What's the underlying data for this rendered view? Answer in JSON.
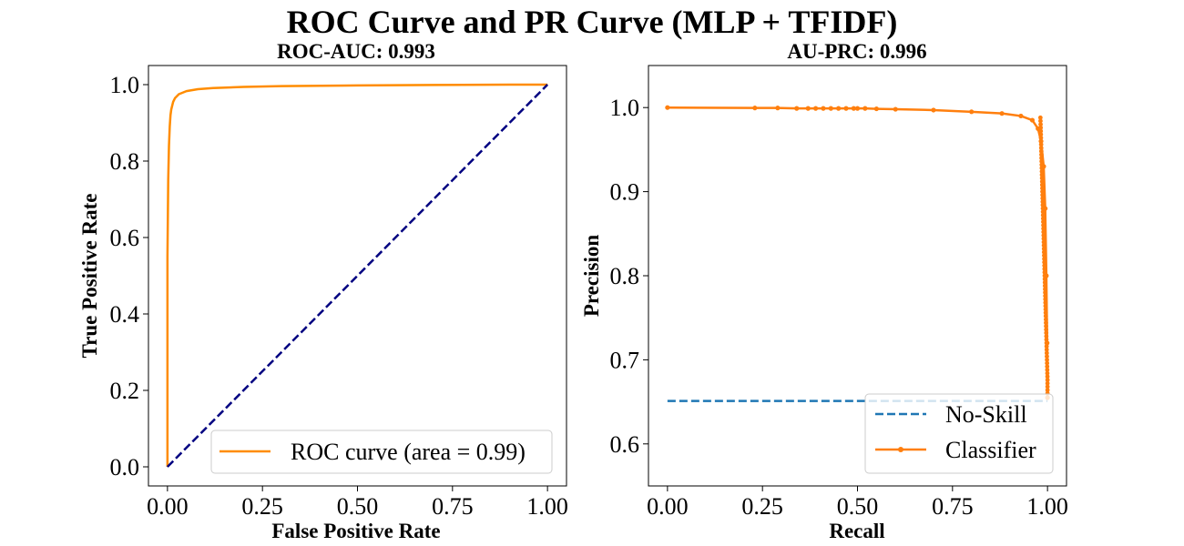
{
  "figure": {
    "title": "ROC Curve and PR Curve (MLP + TFIDF)"
  },
  "chart_data": [
    {
      "type": "line",
      "title": "ROC-AUC: 0.993",
      "xlabel": "False Positive Rate",
      "ylabel": "True Positive Rate",
      "xlim": [
        -0.05,
        1.05
      ],
      "ylim": [
        -0.05,
        1.05
      ],
      "xticks": [
        "0.00",
        "0.25",
        "0.50",
        "0.75",
        "1.00"
      ],
      "yticks": [
        "0.0",
        "0.2",
        "0.4",
        "0.6",
        "0.8",
        "1.0"
      ],
      "legend_position": "lower-right",
      "series": [
        {
          "name": "ROC curve (area = 0.99)",
          "color": "#ff8c00",
          "style": "solid",
          "x": [
            0,
            0.0,
            0.002,
            0.004,
            0.006,
            0.008,
            0.01,
            0.015,
            0.02,
            0.03,
            0.05,
            0.08,
            0.12,
            0.2,
            0.3,
            0.5,
            0.7,
            0.9,
            1.0
          ],
          "y": [
            0,
            0.55,
            0.75,
            0.84,
            0.89,
            0.92,
            0.935,
            0.955,
            0.965,
            0.975,
            0.983,
            0.988,
            0.991,
            0.994,
            0.996,
            0.998,
            0.999,
            1.0,
            1.0
          ]
        },
        {
          "name": "",
          "color": "#000080",
          "style": "dashed",
          "x": [
            0,
            1
          ],
          "y": [
            0,
            1
          ]
        }
      ]
    },
    {
      "type": "line",
      "title": "AU-PRC: 0.996",
      "xlabel": "Recall",
      "ylabel": "Precision",
      "xlim": [
        -0.05,
        1.05
      ],
      "ylim": [
        0.55,
        1.05
      ],
      "xticks": [
        "0.00",
        "0.25",
        "0.50",
        "0.75",
        "1.00"
      ],
      "yticks": [
        "0.6",
        "0.7",
        "0.8",
        "0.9",
        "1.0"
      ],
      "legend_position": "lower-right",
      "series": [
        {
          "name": "No-Skill",
          "color": "#1f77b4",
          "style": "dashed",
          "x": [
            0,
            1
          ],
          "y": [
            0.651,
            0.651
          ]
        },
        {
          "name": "Classifier",
          "color": "#ff7f0e",
          "style": "solid-marker",
          "x": [
            0.0,
            0.23,
            0.29,
            0.34,
            0.37,
            0.39,
            0.41,
            0.43,
            0.45,
            0.47,
            0.49,
            0.5,
            0.52,
            0.55,
            0.6,
            0.7,
            0.8,
            0.88,
            0.93,
            0.96,
            0.975,
            0.983,
            0.99,
            0.994,
            0.997,
            0.999,
            1.0
          ],
          "y": [
            1.0,
            0.9995,
            0.9995,
            0.999,
            0.999,
            0.999,
            0.999,
            0.999,
            0.999,
            0.999,
            0.999,
            0.999,
            0.999,
            0.9985,
            0.998,
            0.997,
            0.995,
            0.993,
            0.99,
            0.985,
            0.975,
            0.96,
            0.93,
            0.88,
            0.8,
            0.72,
            0.655
          ]
        }
      ]
    }
  ]
}
